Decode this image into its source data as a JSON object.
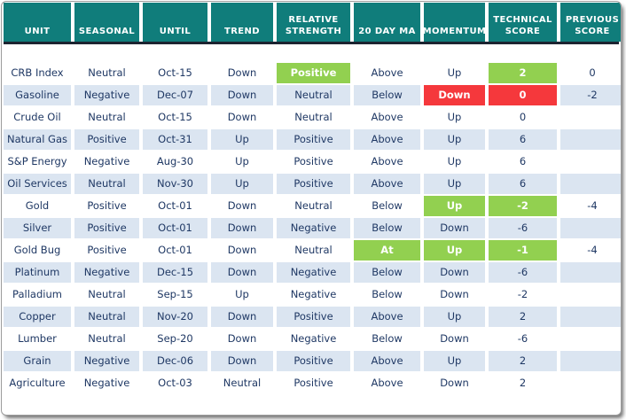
{
  "chart_data": {
    "type": "table",
    "columns": [
      {
        "id": "unit",
        "label": "UNIT"
      },
      {
        "id": "seasonal",
        "label": "SEASONAL"
      },
      {
        "id": "until",
        "label": "UNTIL"
      },
      {
        "id": "trend",
        "label": "TREND"
      },
      {
        "id": "relative-strength",
        "label": "RELATIVE STRENGTH"
      },
      {
        "id": "20-day-ma",
        "label": "20 DAY MA"
      },
      {
        "id": "momentum",
        "label": "MOMENTUM"
      },
      {
        "id": "technical-score",
        "label": "TECHNICAL SCORE"
      },
      {
        "id": "previous-score",
        "label": "PREVIOUS SCORE"
      }
    ],
    "rows": [
      {
        "cells": [
          {
            "t": "CRB Index"
          },
          {
            "t": "Neutral"
          },
          {
            "t": "Oct-15"
          },
          {
            "t": "Down"
          },
          {
            "t": "Positive",
            "h": "green"
          },
          {
            "t": "Above"
          },
          {
            "t": "Up"
          },
          {
            "t": "2",
            "h": "green"
          },
          {
            "t": "0"
          }
        ]
      },
      {
        "cells": [
          {
            "t": "Gasoline"
          },
          {
            "t": "Negative"
          },
          {
            "t": "Dec-07"
          },
          {
            "t": "Down"
          },
          {
            "t": "Neutral"
          },
          {
            "t": "Below"
          },
          {
            "t": "Down",
            "h": "red"
          },
          {
            "t": "0",
            "h": "red"
          },
          {
            "t": "-2"
          }
        ]
      },
      {
        "cells": [
          {
            "t": "Crude Oil"
          },
          {
            "t": "Neutral"
          },
          {
            "t": "Oct-15"
          },
          {
            "t": "Down"
          },
          {
            "t": "Neutral"
          },
          {
            "t": "Above"
          },
          {
            "t": "Up"
          },
          {
            "t": "0"
          },
          {
            "t": ""
          }
        ]
      },
      {
        "cells": [
          {
            "t": "Natural Gas"
          },
          {
            "t": "Positive"
          },
          {
            "t": "Oct-31"
          },
          {
            "t": "Up"
          },
          {
            "t": "Positive"
          },
          {
            "t": "Above"
          },
          {
            "t": "Up"
          },
          {
            "t": "6"
          },
          {
            "t": ""
          }
        ]
      },
      {
        "cells": [
          {
            "t": "S&P Energy"
          },
          {
            "t": "Negative"
          },
          {
            "t": "Aug-30"
          },
          {
            "t": "Up"
          },
          {
            "t": "Positive"
          },
          {
            "t": "Above"
          },
          {
            "t": "Up"
          },
          {
            "t": "6"
          },
          {
            "t": ""
          }
        ]
      },
      {
        "cells": [
          {
            "t": "Oil Services"
          },
          {
            "t": "Neutral"
          },
          {
            "t": "Nov-30"
          },
          {
            "t": "Up"
          },
          {
            "t": "Positive"
          },
          {
            "t": "Above"
          },
          {
            "t": "Up"
          },
          {
            "t": "6"
          },
          {
            "t": ""
          }
        ]
      },
      {
        "cells": [
          {
            "t": "Gold"
          },
          {
            "t": "Positive"
          },
          {
            "t": "Oct-01"
          },
          {
            "t": "Down"
          },
          {
            "t": "Neutral"
          },
          {
            "t": "Below"
          },
          {
            "t": "Up",
            "h": "green"
          },
          {
            "t": "-2",
            "h": "green"
          },
          {
            "t": "-4"
          }
        ]
      },
      {
        "cells": [
          {
            "t": "Silver"
          },
          {
            "t": "Positive"
          },
          {
            "t": "Oct-01"
          },
          {
            "t": "Down"
          },
          {
            "t": "Negative"
          },
          {
            "t": "Below"
          },
          {
            "t": "Down"
          },
          {
            "t": "-6"
          },
          {
            "t": ""
          }
        ]
      },
      {
        "cells": [
          {
            "t": "Gold Bug"
          },
          {
            "t": "Positive"
          },
          {
            "t": "Oct-01"
          },
          {
            "t": "Down"
          },
          {
            "t": "Neutral"
          },
          {
            "t": "At",
            "h": "green"
          },
          {
            "t": "Up",
            "h": "green"
          },
          {
            "t": "-1",
            "h": "green"
          },
          {
            "t": "-4"
          }
        ]
      },
      {
        "cells": [
          {
            "t": "Platinum"
          },
          {
            "t": "Negative"
          },
          {
            "t": "Dec-15"
          },
          {
            "t": "Down"
          },
          {
            "t": "Negative"
          },
          {
            "t": "Below"
          },
          {
            "t": "Down"
          },
          {
            "t": "-6"
          },
          {
            "t": ""
          }
        ]
      },
      {
        "cells": [
          {
            "t": "Palladium"
          },
          {
            "t": "Neutral"
          },
          {
            "t": "Sep-15"
          },
          {
            "t": "Up"
          },
          {
            "t": "Negative"
          },
          {
            "t": "Below"
          },
          {
            "t": "Down"
          },
          {
            "t": "-2"
          },
          {
            "t": ""
          }
        ]
      },
      {
        "cells": [
          {
            "t": "Copper"
          },
          {
            "t": "Neutral"
          },
          {
            "t": "Nov-20"
          },
          {
            "t": "Down"
          },
          {
            "t": "Positive"
          },
          {
            "t": "Above"
          },
          {
            "t": "Up"
          },
          {
            "t": "2"
          },
          {
            "t": ""
          }
        ]
      },
      {
        "cells": [
          {
            "t": "Lumber"
          },
          {
            "t": "Neutral"
          },
          {
            "t": "Sep-20"
          },
          {
            "t": "Down"
          },
          {
            "t": "Negative"
          },
          {
            "t": "Below"
          },
          {
            "t": "Down"
          },
          {
            "t": "-6"
          },
          {
            "t": ""
          }
        ]
      },
      {
        "cells": [
          {
            "t": "Grain"
          },
          {
            "t": "Negative"
          },
          {
            "t": "Dec-06"
          },
          {
            "t": "Down"
          },
          {
            "t": "Positive"
          },
          {
            "t": "Above"
          },
          {
            "t": "Up"
          },
          {
            "t": "2"
          },
          {
            "t": ""
          }
        ]
      },
      {
        "cells": [
          {
            "t": "Agriculture"
          },
          {
            "t": "Negative"
          },
          {
            "t": "Oct-03"
          },
          {
            "t": "Neutral"
          },
          {
            "t": "Positive"
          },
          {
            "t": "Above"
          },
          {
            "t": "Down"
          },
          {
            "t": "2"
          },
          {
            "t": ""
          }
        ]
      }
    ]
  },
  "colors": {
    "header_bg": "#107d7b",
    "divider": "#1c2431",
    "text": "#1f3864",
    "stripe": "#dbe5f1",
    "green": "#92d050",
    "red": "#f5383c"
  }
}
